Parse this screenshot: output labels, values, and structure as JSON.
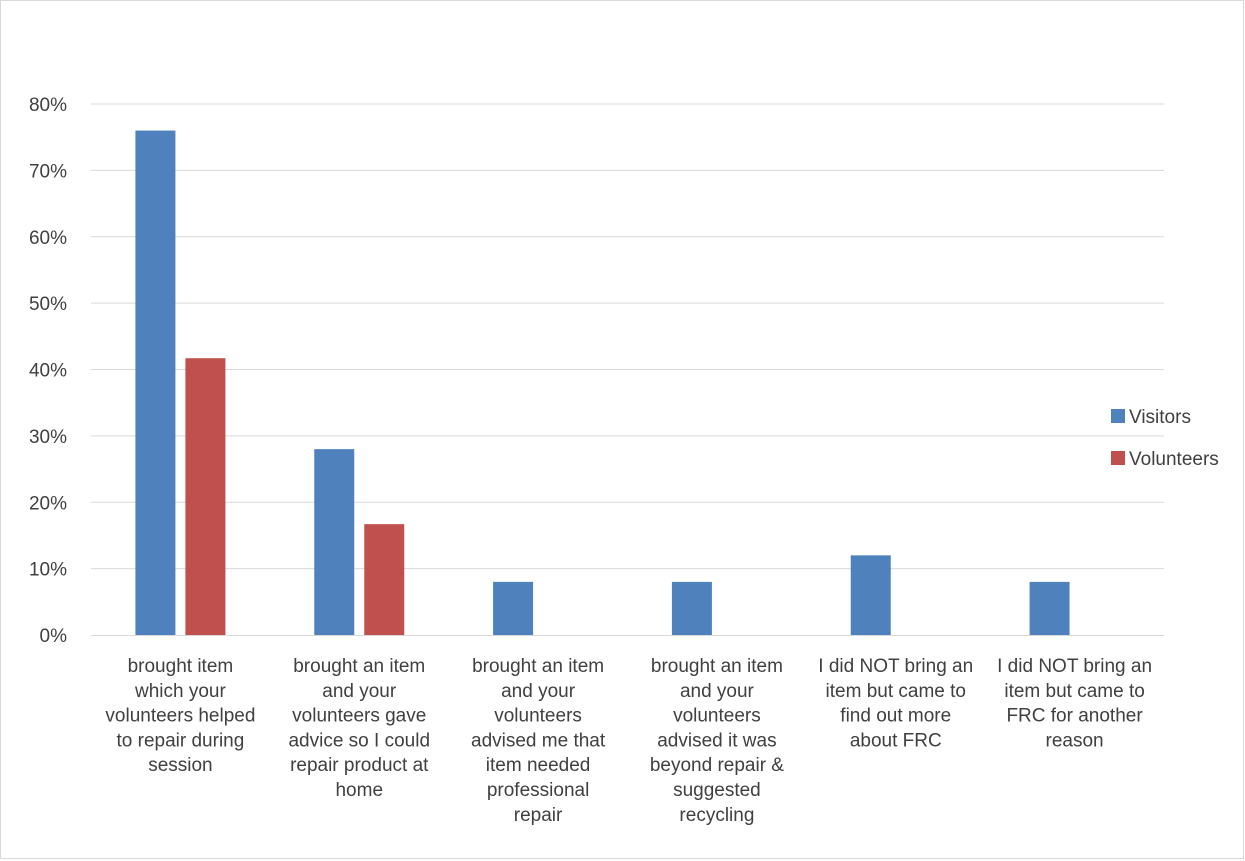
{
  "chart_data": {
    "type": "bar",
    "title": "",
    "xlabel": "",
    "ylabel": "",
    "ylim": [
      0,
      0.8
    ],
    "yticks": [
      "0%",
      "10%",
      "20%",
      "30%",
      "40%",
      "50%",
      "60%",
      "70%",
      "80%"
    ],
    "grid": true,
    "legend_position": "right",
    "categories": [
      [
        "brought item",
        "which your",
        "volunteers helped",
        "to repair during",
        "session"
      ],
      [
        "brought an item",
        "and your",
        "volunteers gave",
        "advice so I could",
        "repair product at",
        "home"
      ],
      [
        "brought an item",
        "and your",
        "volunteers",
        "advised me that",
        "item needed",
        "professional",
        "repair"
      ],
      [
        "brought an item",
        "and your",
        "volunteers",
        "advised it was",
        "beyond repair &",
        "suggested",
        "recycling"
      ],
      [
        "I did NOT bring an",
        "item but came to",
        "find out more",
        "about FRC"
      ],
      [
        "I did NOT bring an",
        "item but came to",
        "FRC for another",
        "reason"
      ]
    ],
    "series": [
      {
        "name": "Visitors",
        "color": "#4f81bd",
        "values": [
          0.76,
          0.28,
          0.08,
          0.08,
          0.12,
          0.08
        ]
      },
      {
        "name": "Volunteers",
        "color": "#c0504d",
        "values": [
          0.417,
          0.167,
          null,
          null,
          null,
          null
        ]
      }
    ]
  }
}
